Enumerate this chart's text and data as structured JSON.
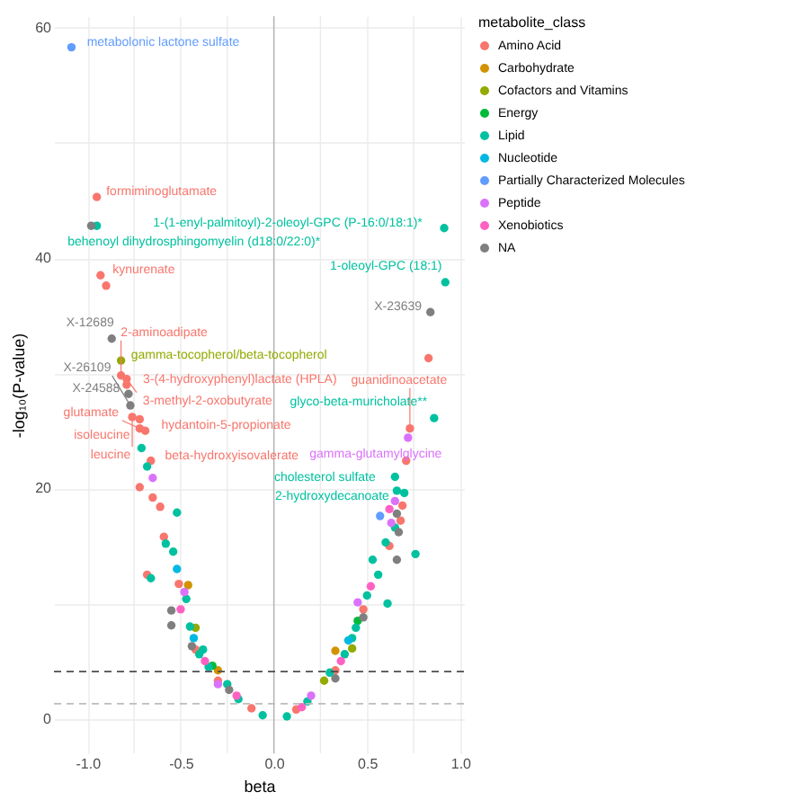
{
  "chart_data": {
    "type": "scatter",
    "xlabel": "beta",
    "ylabel": "-log₁₀(P-value)",
    "legend_title": "metabolite_class",
    "legend": "right",
    "marker": "circle",
    "grid": true,
    "xlim": [
      -1.18,
      1.02
    ],
    "ylim": [
      -3,
      61
    ],
    "xticks": [
      {
        "value": -1,
        "label": "-1.0"
      },
      {
        "value": -0.75,
        "label": null
      },
      {
        "value": -0.5,
        "label": "-0.5"
      },
      {
        "value": -0.25,
        "label": null
      },
      {
        "value": 0,
        "label": "0.0"
      },
      {
        "value": 0.25,
        "label": null
      },
      {
        "value": 0.5,
        "label": "0.5"
      },
      {
        "value": 0.75,
        "label": null
      },
      {
        "value": 1,
        "label": "1.0"
      }
    ],
    "yticks": [
      0,
      {
        "value": 10,
        "label": null
      },
      20,
      {
        "value": 30,
        "label": null
      },
      40,
      {
        "value": 50,
        "label": null
      },
      60
    ],
    "ref_lines": [
      {
        "axis": "x",
        "value": 0,
        "color": "#b3b3b3",
        "line_style": "solid"
      },
      {
        "axis": "y",
        "value": 4.1,
        "color": "#4d4d4d",
        "line_style": "dashed"
      },
      {
        "axis": "y",
        "value": 1.3,
        "color": "#bdbdbd",
        "line_style": "dashed"
      }
    ],
    "series": [
      {
        "name": "Amino Acid",
        "color": "#f8766d",
        "x": [
          -0.95,
          -0.93,
          -0.9,
          -0.79,
          -0.82,
          -0.79,
          -0.76,
          -0.72,
          -0.72,
          -0.69,
          -0.66,
          0.83,
          0.73,
          0.71,
          -0.72,
          -0.65,
          -0.61,
          -0.68,
          -0.59,
          -0.51,
          -0.42,
          -0.3,
          -0.12,
          0.12,
          0.33,
          0.48,
          0.69,
          0.68,
          0.62
        ],
        "values": [
          45.3,
          38.5,
          37.6,
          29.5,
          29.8,
          29.0,
          26.2,
          26.0,
          25.2,
          25.0,
          22.4,
          31.3,
          25.2,
          22.4,
          20.1,
          19.2,
          18.4,
          12.5,
          15.8,
          11.7,
          6.0,
          3.3,
          0.9,
          0.8,
          4.2,
          9.5,
          18.5,
          17.2,
          15.0
        ]
      },
      {
        "name": "Carbohydrate",
        "color": "#d39200",
        "x": [
          -0.46,
          0.33,
          -0.3
        ],
        "values": [
          11.6,
          5.9,
          4.2
        ]
      },
      {
        "name": "Cofactors and Vitamins",
        "color": "#93aa00",
        "x": [
          -0.82,
          -0.42,
          0.42,
          0.27
        ],
        "values": [
          31.1,
          7.9,
          6.1,
          3.3
        ]
      },
      {
        "name": "Energy",
        "color": "#00ba38",
        "x": [
          0.45,
          -0.33
        ],
        "values": [
          8.5,
          4.6
        ]
      },
      {
        "name": "Lipid",
        "color": "#00c19f",
        "x": [
          -0.95,
          0.914,
          0.92,
          0.86,
          0.65,
          0.66,
          0.7,
          -0.71,
          -0.68,
          -0.52,
          -0.66,
          -0.54,
          -0.47,
          -0.4,
          -0.35,
          -0.25,
          -0.19,
          -0.06,
          0.07,
          0.18,
          0.3,
          0.38,
          0.44,
          0.5,
          0.53,
          0.6,
          0.65,
          0.76,
          0.61,
          -0.45,
          0.42,
          -0.38,
          0.56,
          -0.58
        ],
        "values": [
          42.8,
          42.6,
          37.9,
          26.1,
          21.0,
          19.8,
          19.6,
          23.5,
          21.9,
          17.9,
          12.2,
          14.5,
          10.4,
          5.6,
          4.5,
          3.0,
          1.7,
          0.3,
          0.2,
          1.5,
          4.0,
          5.6,
          7.9,
          10.7,
          13.8,
          15.3,
          16.6,
          14.3,
          10.0,
          8.0,
          7.0,
          6.0,
          12.5,
          15.2
        ]
      },
      {
        "name": "Nucleotide",
        "color": "#00b9e3",
        "x": [
          -0.52,
          -0.43,
          0.4
        ],
        "values": [
          13.0,
          7.0,
          6.8
        ]
      },
      {
        "name": "Partially Characterized Molecules",
        "color": "#619cff",
        "x": [
          -1.086,
          0.57
        ],
        "values": [
          58.3,
          17.6
        ]
      },
      {
        "name": "Peptide",
        "color": "#db72fb",
        "x": [
          0.72,
          -0.65,
          0.65,
          -0.48,
          0.45,
          -0.3,
          0.2,
          0.63
        ],
        "values": [
          24.4,
          20.9,
          18.9,
          11.0,
          10.1,
          3.0,
          2.0,
          17.0
        ]
      },
      {
        "name": "Xenobiotics",
        "color": "#ff61c3",
        "x": [
          -0.5,
          -0.37,
          -0.2,
          0.15,
          0.36,
          0.52,
          0.62
        ],
        "values": [
          9.5,
          5.0,
          2.0,
          1.0,
          5.0,
          11.5,
          18.2
        ]
      },
      {
        "name": "NA",
        "color": "#7f7f7f",
        "x": [
          -0.98,
          -0.87,
          0.84,
          -0.78,
          -0.77,
          0.66,
          0.67,
          -0.55,
          -0.55,
          0.66,
          -0.44,
          0.33,
          0.48,
          -0.24
        ],
        "values": [
          42.8,
          33.0,
          35.3,
          28.2,
          27.2,
          17.8,
          16.2,
          9.4,
          8.1,
          13.8,
          6.3,
          3.5,
          8.8,
          2.5
        ]
      }
    ],
    "annotations": [
      {
        "text": "metabolonic lactone sulfate",
        "x": -1.086,
        "y": 58.3
      },
      {
        "text": "formiminoglutamate",
        "x": -0.95,
        "y": 45.3
      },
      {
        "text": "behenoyl dihydrosphingomyelin (d18:0/22:0)*",
        "x": -0.95,
        "y": 42.8
      },
      {
        "text": "1-(1-enyl-palmitoyl)-2-oleoyl-GPC (P-16:0/18:1)*",
        "x": 0.914,
        "y": 42.6
      },
      {
        "text": "kynurenate",
        "x": -0.93,
        "y": 38.5
      },
      {
        "text": "1-oleoyl-GPC (18:1)",
        "x": 0.92,
        "y": 37.9
      },
      {
        "text": "X-23639",
        "x": 0.84,
        "y": 35.3
      },
      {
        "text": "X-12689",
        "x": -0.87,
        "y": 33.0
      },
      {
        "text": "gamma-tocopherol/beta-tocopherol",
        "x": -0.82,
        "y": 31.1
      },
      {
        "text": "3-methyl-2-oxobutyrate",
        "x": -0.79,
        "y": 29.5
      },
      {
        "text": "2-aminoadipate",
        "x": -0.82,
        "y": 29.8
      },
      {
        "text": "3-(4-hydroxyphenyl)lactate (HPLA)",
        "x": -0.79,
        "y": 29.0
      },
      {
        "text": "X-24588",
        "x": -0.78,
        "y": 28.2
      },
      {
        "text": "X-26109",
        "x": -0.77,
        "y": 27.2
      },
      {
        "text": "leucine",
        "x": -0.76,
        "y": 26.2
      },
      {
        "text": "isoleucine",
        "x": -0.72,
        "y": 26.0
      },
      {
        "text": "glutamate",
        "x": -0.72,
        "y": 25.2
      },
      {
        "text": "hydantoin-5-propionate",
        "x": -0.69,
        "y": 25.0
      },
      {
        "text": "beta-hydroxyisovalerate",
        "x": -0.66,
        "y": 22.4
      },
      {
        "text": "glyco-beta-muricholate**",
        "x": 0.86,
        "y": 26.1
      },
      {
        "text": "guanidinoacetate",
        "x": 0.73,
        "y": 25.2
      },
      {
        "text": "gamma-glutamylglycine",
        "x": 0.72,
        "y": 24.4
      },
      {
        "text": "cholesterol sulfate",
        "x": 0.65,
        "y": 21.0
      },
      {
        "text": "2-hydroxydecanoate",
        "x": 0.66,
        "y": 19.8
      }
    ]
  }
}
